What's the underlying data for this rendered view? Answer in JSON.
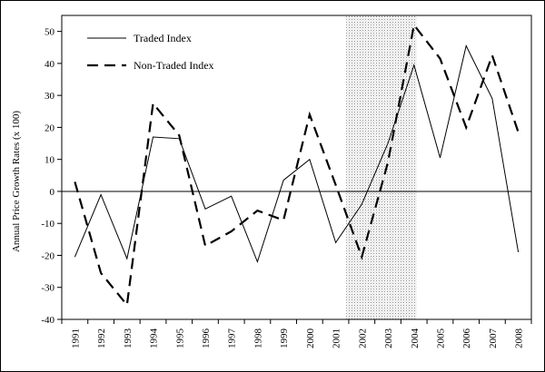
{
  "chart_data": {
    "type": "line",
    "ylabel": "Annual Price Growth Rates (x 100)",
    "xlabel": "",
    "categories": [
      "1991",
      "1992",
      "1993",
      "1994",
      "1995",
      "1996",
      "1997",
      "1998",
      "1999",
      "2000",
      "2001",
      "2002",
      "2003",
      "2004",
      "2005",
      "2006",
      "2007",
      "2008"
    ],
    "ylim": [
      -40,
      55
    ],
    "yticks": [
      -40,
      -30,
      -20,
      -10,
      0,
      10,
      20,
      30,
      40,
      50
    ],
    "shaded_range": [
      "2002",
      "2004"
    ],
    "grid": false,
    "legend_position": "top-left",
    "series": [
      {
        "name": "Traded Index",
        "line_style": "solid",
        "values": [
          -20.5,
          -1,
          -21,
          17,
          16.5,
          -5.5,
          -1.5,
          -22,
          3.5,
          10,
          -16,
          -4,
          15,
          39.5,
          10.5,
          45.5,
          29,
          -19
        ]
      },
      {
        "name": "Non-Traded Index",
        "line_style": "dashed",
        "values": [
          3,
          -25.5,
          -35.5,
          27.5,
          17.5,
          -17,
          -12.5,
          -6,
          -9,
          24,
          2,
          -20.5,
          9,
          52,
          41.5,
          20,
          42.5,
          18.5
        ]
      }
    ]
  }
}
